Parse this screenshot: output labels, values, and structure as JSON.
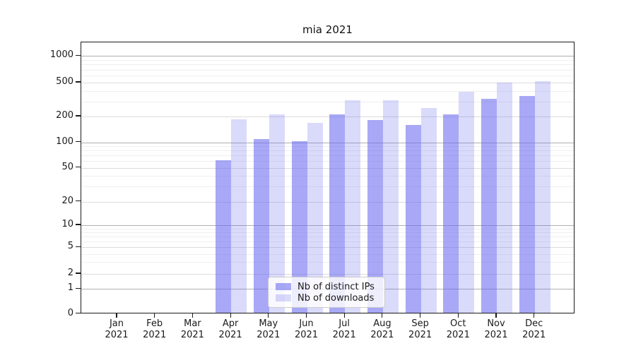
{
  "figure": {
    "title": "mia 2021"
  },
  "chart_data": {
    "type": "bar",
    "title": "mia 2021",
    "yscale": "symlog",
    "ylim": [
      0,
      1440
    ],
    "yticks": [
      0,
      1,
      2,
      5,
      10,
      20,
      50,
      100,
      200,
      500,
      1000
    ],
    "grid": true,
    "legend_position": "lower center",
    "categories": [
      {
        "label": "Jan",
        "sublabel": "2021"
      },
      {
        "label": "Feb",
        "sublabel": "2021"
      },
      {
        "label": "Mar",
        "sublabel": "2021"
      },
      {
        "label": "Apr",
        "sublabel": "2021"
      },
      {
        "label": "May",
        "sublabel": "2021"
      },
      {
        "label": "Jun",
        "sublabel": "2021"
      },
      {
        "label": "Jul",
        "sublabel": "2021"
      },
      {
        "label": "Aug",
        "sublabel": "2021"
      },
      {
        "label": "Sep",
        "sublabel": "2021"
      },
      {
        "label": "Oct",
        "sublabel": "2021"
      },
      {
        "label": "Nov",
        "sublabel": "2021"
      },
      {
        "label": "Dec",
        "sublabel": "2021"
      }
    ],
    "series": [
      {
        "name": "Nb of distinct IPs",
        "color": "#6666f0",
        "alpha": 0.57,
        "values": [
          0,
          0,
          0,
          62,
          110,
          104,
          212,
          181,
          160,
          210,
          325,
          350
        ]
      },
      {
        "name": "Nb of downloads",
        "color": "#6666f0",
        "alpha": 0.24,
        "values": [
          0,
          0,
          0,
          185,
          212,
          168,
          310,
          310,
          250,
          387,
          497,
          515
        ]
      }
    ]
  }
}
